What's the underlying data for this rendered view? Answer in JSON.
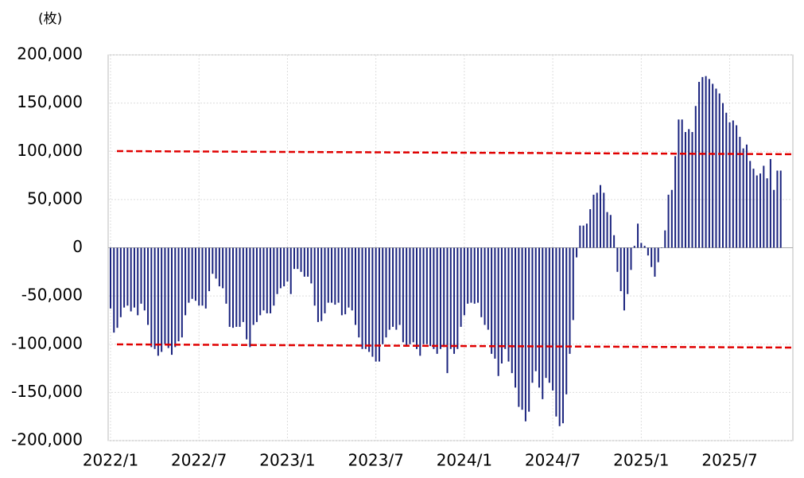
{
  "chart_data": {
    "type": "bar",
    "unit_label": "(枚)",
    "categories": [
      "2022/1",
      null,
      null,
      null,
      null,
      null,
      null,
      null,
      null,
      null,
      null,
      null,
      null,
      null,
      null,
      null,
      null,
      null,
      null,
      null,
      null,
      null,
      null,
      null,
      null,
      null,
      "2022/7",
      null,
      null,
      null,
      null,
      null,
      null,
      null,
      null,
      null,
      null,
      null,
      null,
      null,
      null,
      null,
      null,
      null,
      null,
      null,
      null,
      null,
      null,
      null,
      null,
      null,
      "2023/1",
      null,
      null,
      null,
      null,
      null,
      null,
      null,
      null,
      null,
      null,
      null,
      null,
      null,
      null,
      null,
      null,
      null,
      null,
      null,
      null,
      null,
      null,
      null,
      null,
      null,
      "2023/7",
      null,
      null,
      null,
      null,
      null,
      null,
      null,
      null,
      null,
      null,
      null,
      null,
      null,
      null,
      null,
      null,
      null,
      null,
      null,
      null,
      null,
      null,
      null,
      null,
      null,
      "2024/1",
      null,
      null,
      null,
      null,
      null,
      null,
      null,
      null,
      null,
      null,
      null,
      null,
      null,
      null,
      null,
      null,
      null,
      null,
      null,
      null,
      null,
      null,
      null,
      null,
      null,
      "2024/7",
      null,
      null,
      null,
      null,
      null,
      null,
      null,
      null,
      null,
      null,
      null,
      null,
      null,
      null,
      null,
      null,
      null,
      null,
      null,
      null,
      null,
      null,
      null,
      null,
      null,
      "2025/1",
      null,
      null,
      null,
      null,
      null,
      null,
      null,
      null,
      null,
      null,
      null,
      null,
      null,
      null,
      null,
      null,
      null,
      null,
      null,
      null,
      null,
      null,
      null,
      null,
      null,
      "2025/7",
      null,
      null,
      null,
      null,
      null,
      null,
      null,
      null,
      null,
      null,
      null,
      null,
      null,
      null,
      null
    ],
    "values": [
      -63000,
      -88000,
      -83000,
      -72000,
      -62000,
      -60000,
      -66000,
      -62000,
      -70000,
      -58000,
      -65000,
      -80000,
      -103000,
      -105000,
      -112000,
      -108000,
      -100000,
      -104000,
      -111000,
      -103000,
      -97000,
      -93000,
      -70000,
      -57000,
      -53000,
      -55000,
      -60000,
      -60000,
      -63000,
      -45000,
      -27000,
      -32000,
      -40000,
      -42000,
      -58000,
      -82000,
      -83000,
      -82000,
      -82000,
      -77000,
      -95000,
      -103000,
      -80000,
      -77000,
      -70000,
      -65000,
      -68000,
      -68000,
      -60000,
      -48000,
      -42000,
      -40000,
      -35000,
      -48000,
      -22000,
      -22000,
      -25000,
      -30000,
      -30000,
      -37000,
      -60000,
      -77000,
      -76000,
      -68000,
      -57000,
      -57000,
      -59000,
      -57000,
      -70000,
      -69000,
      -62000,
      -65000,
      -80000,
      -93000,
      -105000,
      -105000,
      -108000,
      -113000,
      -118000,
      -118000,
      -100000,
      -93000,
      -85000,
      -82000,
      -85000,
      -80000,
      -98000,
      -102000,
      -100000,
      -98000,
      -105000,
      -112000,
      -100000,
      -100000,
      -102000,
      -105000,
      -110000,
      -105000,
      -103000,
      -130000,
      -105000,
      -110000,
      -105000,
      -82000,
      -70000,
      -58000,
      -57000,
      -58000,
      -57000,
      -72000,
      -80000,
      -85000,
      -110000,
      -115000,
      -133000,
      -120000,
      -105000,
      -118000,
      -130000,
      -145000,
      -165000,
      -168000,
      -180000,
      -170000,
      -140000,
      -128000,
      -145000,
      -157000,
      -135000,
      -140000,
      -148000,
      -175000,
      -185000,
      -182000,
      -152000,
      -110000,
      -75000,
      -10000,
      23000,
      23000,
      25000,
      40000,
      55000,
      57000,
      65000,
      57000,
      37000,
      34000,
      13000,
      -25000,
      -45000,
      -65000,
      -48000,
      -23000,
      2000,
      25000,
      5000,
      2000,
      -8000,
      -20000,
      -30000,
      -15000,
      0,
      18000,
      55000,
      60000,
      95000,
      133000,
      133000,
      120000,
      123000,
      120000,
      147000,
      172000,
      177000,
      178000,
      175000,
      170000,
      165000,
      160000,
      150000,
      140000,
      130000,
      132000,
      127000,
      115000,
      103000,
      107000,
      90000,
      82000,
      75000,
      77000,
      85000,
      72000,
      92000,
      60000,
      80000,
      80000
    ],
    "color": "#1a237e",
    "ylim": [
      -200000,
      200000
    ],
    "yticks": [
      {
        "value": -200000,
        "label": "-200,000"
      },
      {
        "value": -150000,
        "label": "-150,000"
      },
      {
        "value": -100000,
        "label": "-100,000"
      },
      {
        "value": -50000,
        "label": "-50,000"
      },
      0,
      {
        "value": 50000,
        "label": "50,000"
      },
      {
        "value": 100000,
        "label": "100,000"
      },
      {
        "value": 150000,
        "label": "150,000"
      },
      {
        "value": 200000,
        "label": "200,000"
      }
    ],
    "negative_tick_color": "#e00000",
    "grid": true,
    "reference_lines": [
      {
        "values": [
          100200,
          97000
        ],
        "color": "#e00000"
      },
      {
        "values": [
          -100200,
          -103500
        ],
        "color": "#e00000"
      }
    ]
  }
}
